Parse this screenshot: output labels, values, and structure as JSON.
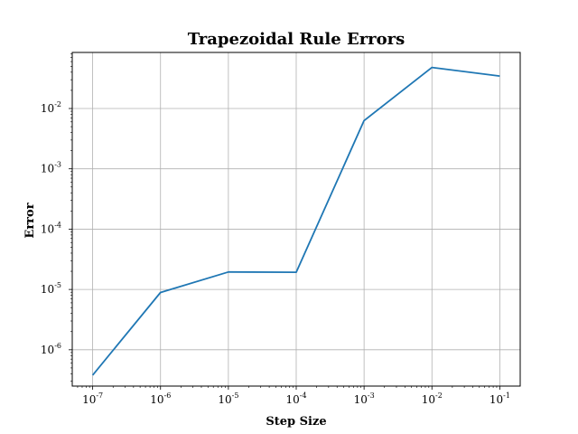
{
  "chart_data": {
    "type": "line",
    "title": "Trapezoidal Rule Errors",
    "xlabel": "Step Size",
    "ylabel": "Error",
    "xscale": "log",
    "yscale": "log",
    "xlim": [
      5e-08,
      0.2
    ],
    "ylim": [
      2.5e-07,
      0.085
    ],
    "grid": true,
    "x_ticks": [
      {
        "base": "10",
        "exp": "-7",
        "value": 1e-07
      },
      {
        "base": "10",
        "exp": "-6",
        "value": 1e-06
      },
      {
        "base": "10",
        "exp": "-5",
        "value": 1e-05
      },
      {
        "base": "10",
        "exp": "-4",
        "value": 0.0001
      },
      {
        "base": "10",
        "exp": "-3",
        "value": 0.001
      },
      {
        "base": "10",
        "exp": "-2",
        "value": 0.01
      },
      {
        "base": "10",
        "exp": "-1",
        "value": 0.1
      }
    ],
    "y_ticks": [
      {
        "base": "10",
        "exp": "-6",
        "value": 1e-06
      },
      {
        "base": "10",
        "exp": "-5",
        "value": 1e-05
      },
      {
        "base": "10",
        "exp": "-4",
        "value": 0.0001
      },
      {
        "base": "10",
        "exp": "-3",
        "value": 0.001
      },
      {
        "base": "10",
        "exp": "-2",
        "value": 0.01
      }
    ],
    "series": [
      {
        "color": "#1f77b4",
        "x": [
          1e-07,
          1e-06,
          1e-05,
          0.0001,
          0.001,
          0.01,
          0.1
        ],
        "y": [
          3.8e-07,
          8.9e-06,
          1.95e-05,
          1.93e-05,
          0.0063,
          0.048,
          0.0345
        ]
      }
    ]
  }
}
